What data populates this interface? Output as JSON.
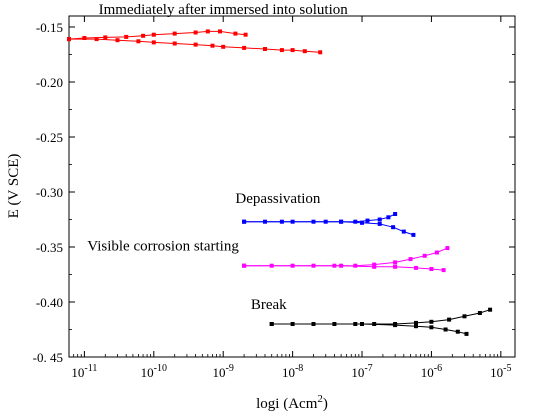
{
  "chart_data": {
    "type": "line",
    "xlabel_base": "logi (Acm",
    "xlabel_sup": "2",
    "xlabel_end": ")",
    "ylabel": "E (V SCE)",
    "x_scale": "log",
    "xlim": [
      6e-12,
      1.6e-05
    ],
    "ylim": [
      -0.45,
      -0.14
    ],
    "x_ticks": [
      {
        "value": 1e-11,
        "label": "10",
        "exp": "-11"
      },
      {
        "value": 1e-10,
        "label": "10",
        "exp": "-10"
      },
      {
        "value": 1e-09,
        "label": "10",
        "exp": "-9"
      },
      {
        "value": 1e-08,
        "label": "10",
        "exp": "-8"
      },
      {
        "value": 1e-07,
        "label": "10",
        "exp": "-7"
      },
      {
        "value": 1e-06,
        "label": "10",
        "exp": "-6"
      },
      {
        "value": 1e-05,
        "label": "10",
        "exp": "-5"
      }
    ],
    "y_ticks": [
      {
        "value": -0.15,
        "label": "-0.15"
      },
      {
        "value": -0.2,
        "label": "-0.20"
      },
      {
        "value": -0.25,
        "label": "-0.25"
      },
      {
        "value": -0.3,
        "label": "-0.30"
      },
      {
        "value": -0.35,
        "label": "-0.35"
      },
      {
        "value": -0.4,
        "label": "-0.40"
      },
      {
        "value": -0.45,
        "label": "-0. 45"
      }
    ],
    "grid": false,
    "series": [
      {
        "name": "Immediately after immersed into solution",
        "color": "#ff0000",
        "branches": [
          [
            [
              6e-12,
              -0.161
            ],
            [
              1e-11,
              -0.16
            ],
            [
              2e-11,
              -0.1595
            ],
            [
              4e-11,
              -0.159
            ],
            [
              7e-11,
              -0.158
            ],
            [
              1e-10,
              -0.157
            ],
            [
              2e-10,
              -0.156
            ],
            [
              4e-10,
              -0.155
            ],
            [
              6e-10,
              -0.154
            ],
            [
              9e-10,
              -0.154
            ],
            [
              1.5e-09,
              -0.156
            ],
            [
              2.1e-09,
              -0.157
            ]
          ],
          [
            [
              6e-12,
              -0.161
            ],
            [
              1.5e-11,
              -0.161
            ],
            [
              3e-11,
              -0.162
            ],
            [
              6e-11,
              -0.163
            ],
            [
              1e-10,
              -0.164
            ],
            [
              2e-10,
              -0.165
            ],
            [
              4e-10,
              -0.166
            ],
            [
              7e-10,
              -0.167
            ],
            [
              1e-09,
              -0.168
            ],
            [
              2e-09,
              -0.169
            ],
            [
              4e-09,
              -0.17
            ],
            [
              7e-09,
              -0.171
            ],
            [
              1e-08,
              -0.171
            ],
            [
              1.5e-08,
              -0.172
            ],
            [
              2.5e-08,
              -0.173
            ]
          ]
        ],
        "label_anchor": [
          1e-09,
          -0.14
        ]
      },
      {
        "name": "Depassivation",
        "color": "#0000ff",
        "branches": [
          [
            [
              2e-09,
              -0.327
            ],
            [
              4e-09,
              -0.327
            ],
            [
              7e-09,
              -0.327
            ],
            [
              1e-08,
              -0.327
            ],
            [
              2e-08,
              -0.327
            ],
            [
              3e-08,
              -0.327
            ],
            [
              5e-08,
              -0.327
            ],
            [
              8e-08,
              -0.327
            ],
            [
              1.2e-07,
              -0.326
            ],
            [
              1.8e-07,
              -0.325
            ],
            [
              2.4e-07,
              -0.323
            ],
            [
              3e-07,
              -0.32
            ]
          ],
          [
            [
              2e-09,
              -0.327
            ],
            [
              5e-08,
              -0.327
            ],
            [
              1e-07,
              -0.328
            ],
            [
              1.8e-07,
              -0.329
            ],
            [
              2.8e-07,
              -0.332
            ],
            [
              4e-07,
              -0.336
            ],
            [
              5.5e-07,
              -0.339
            ]
          ]
        ],
        "label_anchor": [
          1.5e-09,
          -0.312
        ]
      },
      {
        "name": "Visible corrosion starting",
        "color": "#ff00ff",
        "branches": [
          [
            [
              2e-09,
              -0.367
            ],
            [
              5e-09,
              -0.367
            ],
            [
              1e-08,
              -0.367
            ],
            [
              2e-08,
              -0.367
            ],
            [
              4e-08,
              -0.367
            ],
            [
              8e-08,
              -0.367
            ],
            [
              1.5e-07,
              -0.366
            ],
            [
              3e-07,
              -0.364
            ],
            [
              5e-07,
              -0.361
            ],
            [
              8e-07,
              -0.358
            ],
            [
              1.2e-06,
              -0.355
            ],
            [
              1.7e-06,
              -0.351
            ]
          ],
          [
            [
              2e-09,
              -0.367
            ],
            [
              5e-08,
              -0.367
            ],
            [
              1.5e-07,
              -0.368
            ],
            [
              3e-07,
              -0.368
            ],
            [
              6e-07,
              -0.369
            ],
            [
              1e-06,
              -0.37
            ],
            [
              1.5e-06,
              -0.371
            ]
          ]
        ],
        "label_anchor": [
          1.1e-11,
          -0.355
        ]
      },
      {
        "name": "Break",
        "color": "#000000",
        "branches": [
          [
            [
              5e-09,
              -0.42
            ],
            [
              1e-08,
              -0.42
            ],
            [
              2e-08,
              -0.42
            ],
            [
              4e-08,
              -0.42
            ],
            [
              8e-08,
              -0.42
            ],
            [
              1.5e-07,
              -0.42
            ],
            [
              3e-07,
              -0.42
            ],
            [
              6e-07,
              -0.419
            ],
            [
              1e-06,
              -0.418
            ],
            [
              1.8e-06,
              -0.416
            ],
            [
              3e-06,
              -0.413
            ],
            [
              5e-06,
              -0.41
            ],
            [
              7e-06,
              -0.407
            ]
          ],
          [
            [
              5e-09,
              -0.42
            ],
            [
              1e-07,
              -0.42
            ],
            [
              3e-07,
              -0.421
            ],
            [
              6e-07,
              -0.422
            ],
            [
              1e-06,
              -0.423
            ],
            [
              1.6e-06,
              -0.425
            ],
            [
              2.4e-06,
              -0.427
            ],
            [
              3.2e-06,
              -0.429
            ]
          ]
        ],
        "label_anchor": [
          2.5e-09,
          -0.408
        ]
      }
    ]
  }
}
